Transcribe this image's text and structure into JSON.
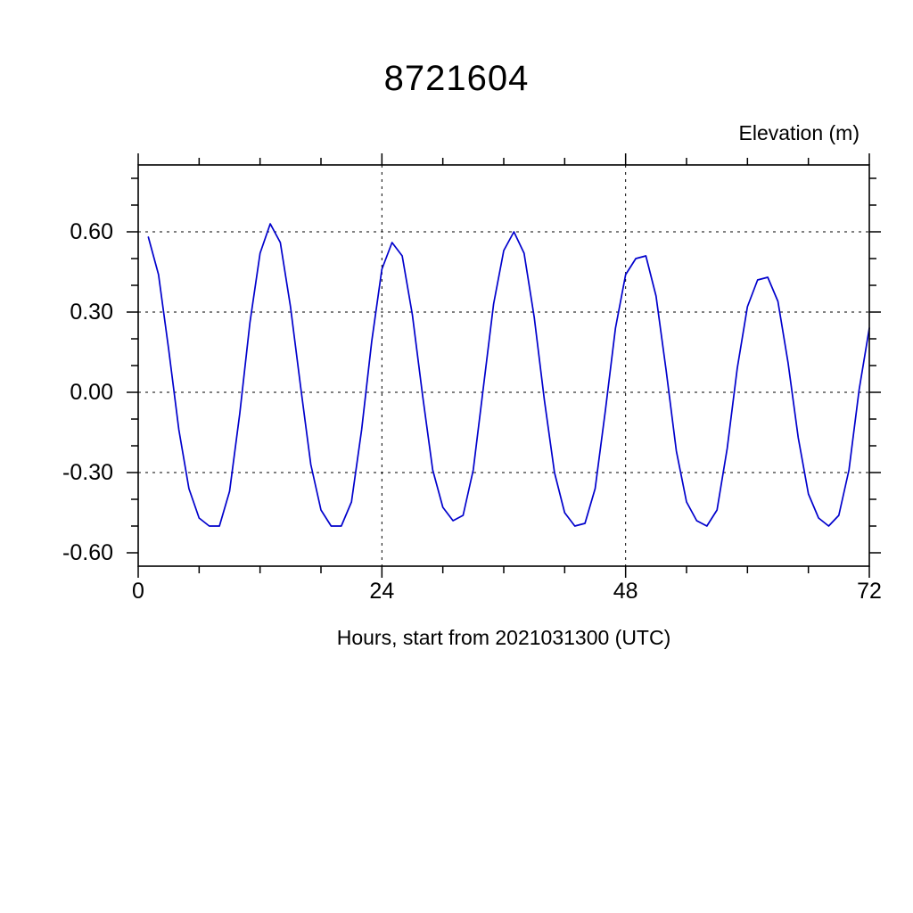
{
  "title": "8721604",
  "chart_data": {
    "type": "line",
    "title": "8721604",
    "ylabel": "Elevation (m)",
    "xlabel": "Hours, start from 2021031300 (UTC)",
    "legend": [],
    "line_color": "#0000cc",
    "axis_color": "#000000",
    "grid": "dashed",
    "xlim": [
      0,
      72
    ],
    "ylim": [
      -0.65,
      0.85
    ],
    "xticks": [
      0,
      24,
      48,
      72
    ],
    "yticks": [
      -0.6,
      -0.3,
      0.0,
      0.3,
      0.6
    ],
    "x_minor_step": 6,
    "y_minor_step": 0.1,
    "grid_x": [
      24,
      48
    ],
    "grid_y": [
      -0.3,
      0.0,
      0.3,
      0.6
    ],
    "x": [
      1,
      2,
      3,
      4,
      5,
      6,
      7,
      8,
      9,
      10,
      11,
      12,
      13,
      14,
      15,
      16,
      17,
      18,
      19,
      20,
      21,
      22,
      23,
      24,
      25,
      26,
      27,
      28,
      29,
      30,
      31,
      32,
      33,
      34,
      35,
      36,
      37,
      38,
      39,
      40,
      41,
      42,
      43,
      44,
      45,
      46,
      47,
      48,
      49,
      50,
      51,
      52,
      53,
      54,
      55,
      56,
      57,
      58,
      59,
      60,
      61,
      62,
      63,
      64,
      65,
      66,
      67,
      68,
      69,
      70,
      71,
      72
    ],
    "y": [
      0.58,
      0.44,
      0.16,
      -0.14,
      -0.36,
      -0.47,
      -0.5,
      -0.5,
      -0.37,
      -0.08,
      0.26,
      0.52,
      0.63,
      0.56,
      0.32,
      0.02,
      -0.27,
      -0.44,
      -0.5,
      -0.5,
      -0.41,
      -0.14,
      0.19,
      0.46,
      0.56,
      0.51,
      0.29,
      -0.01,
      -0.29,
      -0.43,
      -0.48,
      -0.46,
      -0.29,
      0.02,
      0.33,
      0.53,
      0.6,
      0.52,
      0.28,
      -0.03,
      -0.3,
      -0.45,
      -0.5,
      -0.49,
      -0.36,
      -0.07,
      0.24,
      0.44,
      0.5,
      0.51,
      0.36,
      0.08,
      -0.22,
      -0.41,
      -0.48,
      -0.5,
      -0.44,
      -0.21,
      0.09,
      0.32,
      0.42,
      0.43,
      0.34,
      0.11,
      -0.17,
      -0.38,
      -0.47,
      -0.5,
      -0.46,
      -0.29,
      0.01,
      0.24
    ]
  }
}
